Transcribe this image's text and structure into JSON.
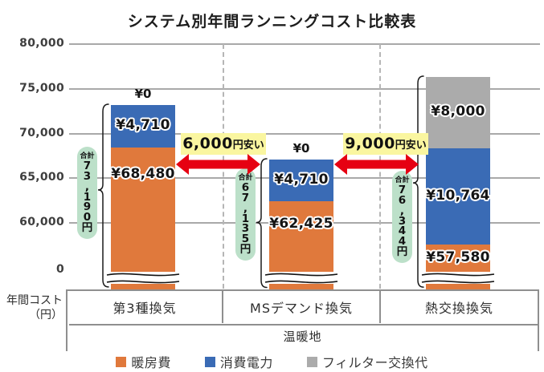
{
  "title": "システム別年間ランニングコスト比較表",
  "chart_data": {
    "type": "bar",
    "stacked": true,
    "title": "システム別年間ランニングコスト比較表",
    "categories": [
      "第3種換気",
      "MSデマンド換気",
      "熱交換換気"
    ],
    "region_label": "温暖地",
    "row_label": "年間コスト（円）",
    "y_ticks": [
      80000,
      75000,
      70000,
      65000,
      60000
    ],
    "y_tick_labels": [
      "80,000",
      "75,000",
      "70,000",
      "65,000",
      "60,000"
    ],
    "y_zero_label": "0",
    "ylim_visible": [
      60000,
      80000
    ],
    "axis_break": true,
    "grid": true,
    "legend_position": "bottom",
    "series": [
      {
        "name": "暖房費",
        "color": "#e0793c",
        "values": [
          68480,
          62425,
          57580
        ],
        "labels": [
          "¥68,480",
          "¥62,425",
          "¥57,580"
        ]
      },
      {
        "name": "消費電力",
        "color": "#3a6bb5",
        "values": [
          4710,
          4710,
          10764
        ],
        "labels": [
          "¥4,710",
          "¥4,710",
          "¥10,764"
        ]
      },
      {
        "name": "フィルター交換代",
        "color": "#ababab",
        "values": [
          0,
          0,
          8000
        ],
        "labels": [
          "¥0",
          "¥0",
          "¥8,000"
        ]
      }
    ],
    "totals": {
      "prefix": "合計",
      "suffix": "円",
      "values": [
        73190,
        67135,
        76344
      ],
      "labels": [
        "73,190",
        "67,135",
        "76,344"
      ]
    },
    "annotations": [
      {
        "big": "6,000",
        "small": "円安い",
        "between": [
          0,
          1
        ]
      },
      {
        "big": "9,000",
        "small": "円安い",
        "between": [
          1,
          2
        ]
      }
    ]
  },
  "axis": {
    "row_label_line1": "年間コスト",
    "row_label_line2": "（円）"
  },
  "colors": {
    "grid": "#a9a9a9",
    "dashed_divider": "#b6b6b6",
    "table_border": "#8f8f8f",
    "total_badge_bg": "#bce0c9",
    "callout_bg": "#faf6a0",
    "arrow_red": "#e60012"
  }
}
